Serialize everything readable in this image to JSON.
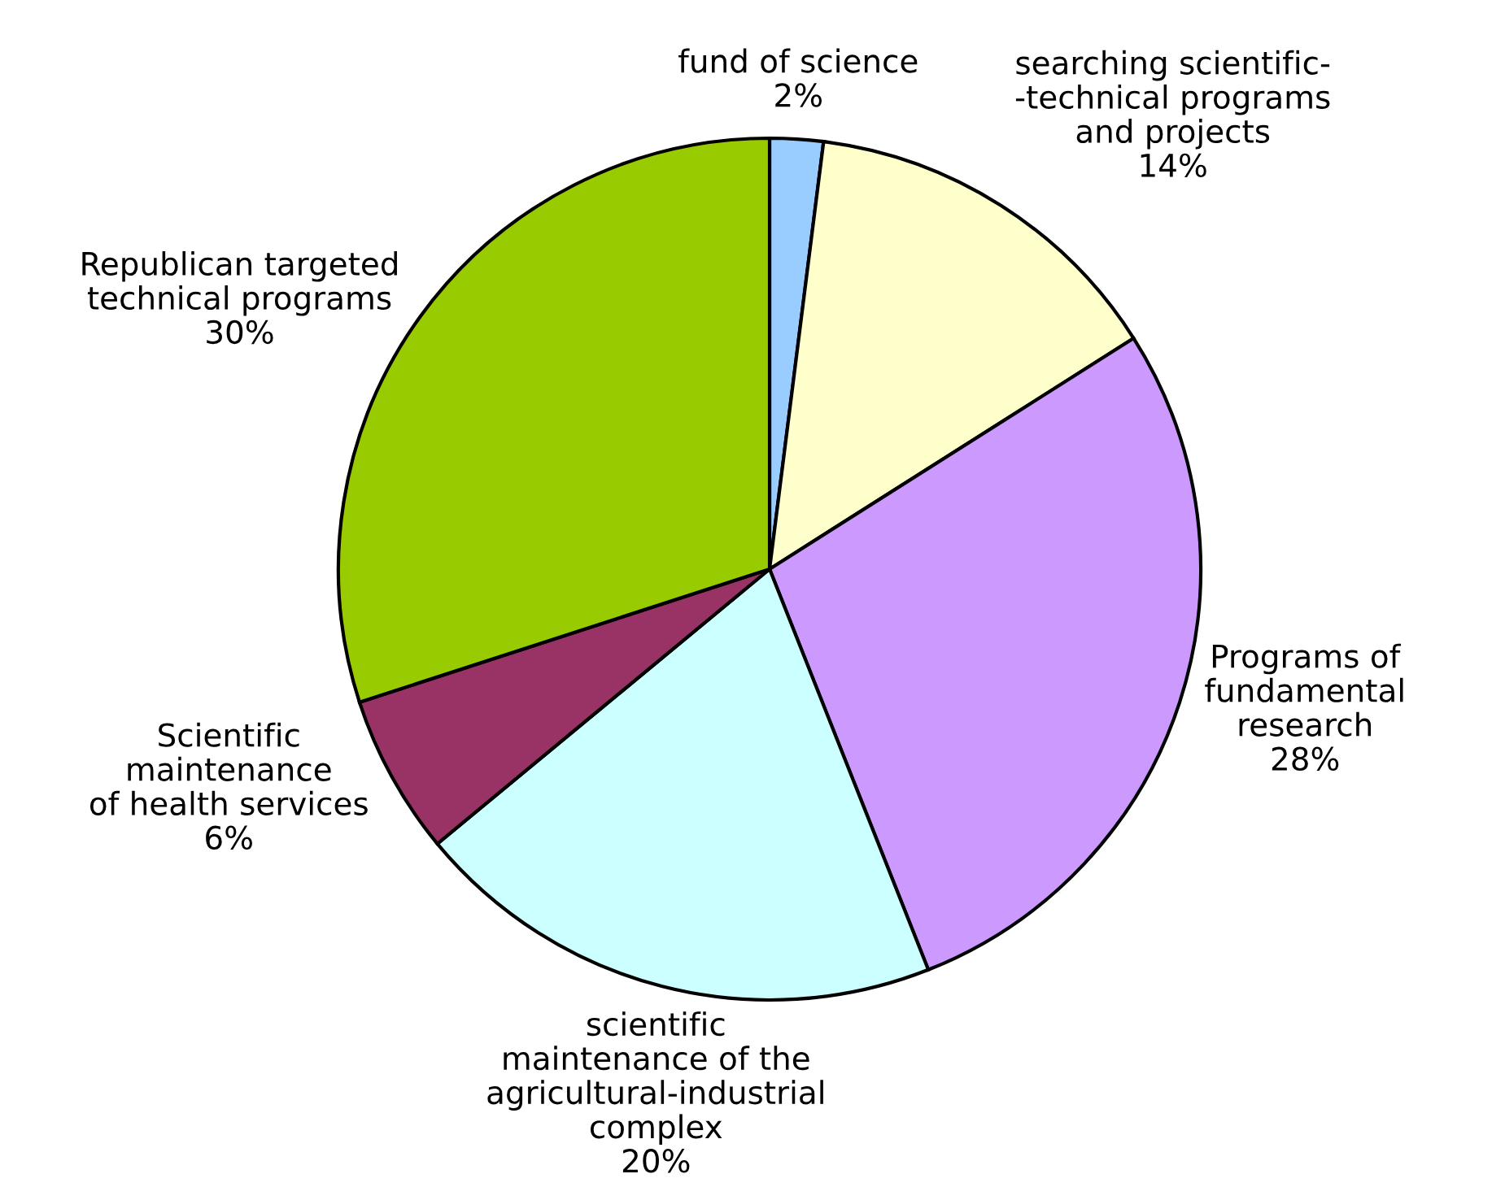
{
  "chart_data": {
    "type": "pie",
    "categories": [
      "fund of science",
      "searching scientific-\n-technical programs\nand projects",
      "Programs of\nfundamental\nresearch",
      "scientific\nmaintenance of the\nagricultural-industrial\ncomplex",
      "Scientific\nmaintenance\nof health services",
      "Republican targeted\ntechnical programs"
    ],
    "values": [
      2,
      14,
      28,
      20,
      6,
      30
    ],
    "value_labels": [
      "2%",
      "14%",
      "28%",
      "20%",
      "6%",
      "30%"
    ],
    "colors": [
      "#99ccff",
      "#ffffcc",
      "#cc99ff",
      "#ccffff",
      "#993366",
      "#99cc00"
    ]
  }
}
